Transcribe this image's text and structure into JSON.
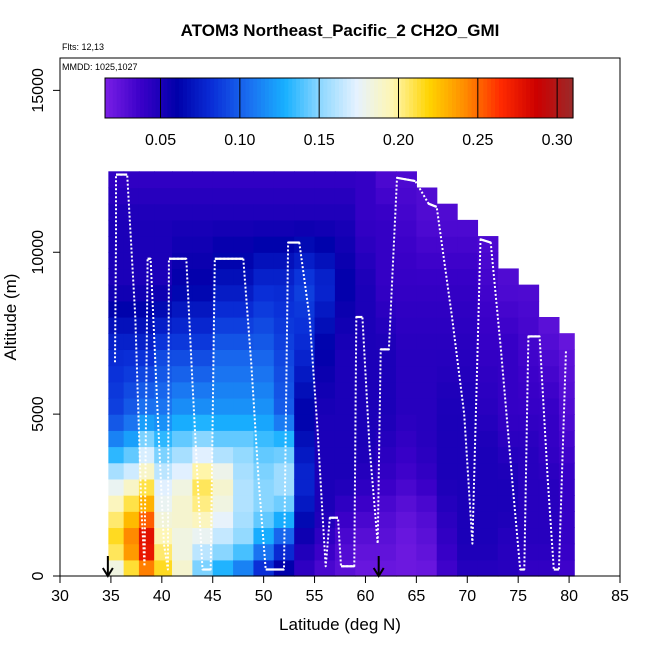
{
  "chart_data": {
    "type": "heatmap",
    "title": "ATOM3 Northeast_Pacific_2 CH2O_GMI",
    "flights_label": "Flts: 12,13",
    "dates_label": "MMDD: 1025,1027",
    "xlabel": "Latitude (deg N)",
    "ylabel": "Altitude (m)",
    "xlim": [
      30,
      85
    ],
    "ylim": [
      0,
      16000
    ],
    "x_ticks": [
      "30",
      "35",
      "40",
      "45",
      "50",
      "55",
      "60",
      "65",
      "70",
      "75",
      "80",
      "85"
    ],
    "y_ticks": [
      "0",
      "5000",
      "10000",
      "15000"
    ],
    "colorbar": {
      "range": [
        0.015,
        0.31
      ],
      "ticks": [
        "0.05",
        "0.10",
        "0.15",
        "0.20",
        "0.25",
        "0.30"
      ],
      "tick_values": [
        0.05,
        0.1,
        0.15,
        0.2,
        0.25,
        0.3
      ],
      "colors": [
        "#7a1fe6",
        "#3a00c8",
        "#0000aa",
        "#0a2fd8",
        "#1a6ff0",
        "#18b0ff",
        "#8fd8ff",
        "#e6f2ff",
        "#fff6b0",
        "#ffd400",
        "#ff8c00",
        "#ff2a00",
        "#cc0000",
        "#9b2a2a"
      ]
    },
    "markers": [
      {
        "label": "marker-1",
        "lat": 34.7
      },
      {
        "label": "marker-2",
        "lat": 61.3
      }
    ],
    "columns": [
      {
        "lat": 35.5,
        "top": 12500,
        "profile": [
          [
            0,
            0.17
          ],
          [
            1000,
            0.22
          ],
          [
            2000,
            0.2
          ],
          [
            3000,
            0.17
          ],
          [
            4000,
            0.12
          ],
          [
            5000,
            0.09
          ],
          [
            7000,
            0.08
          ],
          [
            9000,
            0.05
          ],
          [
            11000,
            0.05
          ],
          [
            12500,
            0.04
          ]
        ]
      },
      {
        "lat": 37.0,
        "top": 12500,
        "profile": [
          [
            0,
            0.2
          ],
          [
            1000,
            0.25
          ],
          [
            2000,
            0.22
          ],
          [
            3000,
            0.18
          ],
          [
            4000,
            0.13
          ],
          [
            5000,
            0.1
          ],
          [
            7000,
            0.08
          ],
          [
            9000,
            0.05
          ],
          [
            11000,
            0.05
          ],
          [
            12500,
            0.04
          ]
        ]
      },
      {
        "lat": 38.5,
        "top": 12500,
        "profile": [
          [
            0,
            0.23
          ],
          [
            1000,
            0.29
          ],
          [
            2000,
            0.24
          ],
          [
            3000,
            0.2
          ],
          [
            4000,
            0.16
          ],
          [
            5000,
            0.11
          ],
          [
            7000,
            0.08
          ],
          [
            9000,
            0.05
          ],
          [
            11000,
            0.05
          ],
          [
            12500,
            0.04
          ]
        ]
      },
      {
        "lat": 40.0,
        "top": 12500,
        "profile": [
          [
            0,
            0.22
          ],
          [
            1000,
            0.2
          ],
          [
            2000,
            0.18
          ],
          [
            3000,
            0.17
          ],
          [
            4000,
            0.14
          ],
          [
            5000,
            0.11
          ],
          [
            7000,
            0.09
          ],
          [
            9000,
            0.05
          ],
          [
            11000,
            0.05
          ],
          [
            12500,
            0.04
          ]
        ]
      },
      {
        "lat": 42.0,
        "top": 12500,
        "profile": [
          [
            0,
            0.19
          ],
          [
            1000,
            0.18
          ],
          [
            2000,
            0.19
          ],
          [
            3000,
            0.18
          ],
          [
            4000,
            0.15
          ],
          [
            5000,
            0.12
          ],
          [
            7000,
            0.09
          ],
          [
            9000,
            0.06
          ],
          [
            11000,
            0.05
          ],
          [
            12500,
            0.04
          ]
        ]
      },
      {
        "lat": 44.0,
        "top": 12500,
        "profile": [
          [
            0,
            0.14
          ],
          [
            1000,
            0.17
          ],
          [
            2000,
            0.2
          ],
          [
            3000,
            0.21
          ],
          [
            4000,
            0.16
          ],
          [
            5000,
            0.12
          ],
          [
            7000,
            0.09
          ],
          [
            9000,
            0.06
          ],
          [
            11000,
            0.05
          ],
          [
            12500,
            0.04
          ]
        ]
      },
      {
        "lat": 46.0,
        "top": 12500,
        "profile": [
          [
            0,
            0.12
          ],
          [
            1000,
            0.16
          ],
          [
            2000,
            0.18
          ],
          [
            3000,
            0.19
          ],
          [
            4000,
            0.15
          ],
          [
            5000,
            0.12
          ],
          [
            7000,
            0.1
          ],
          [
            9000,
            0.07
          ],
          [
            11000,
            0.05
          ],
          [
            12500,
            0.04
          ]
        ]
      },
      {
        "lat": 48.0,
        "top": 12500,
        "profile": [
          [
            0,
            0.1
          ],
          [
            1000,
            0.15
          ],
          [
            2000,
            0.16
          ],
          [
            3000,
            0.16
          ],
          [
            4000,
            0.15
          ],
          [
            5000,
            0.12
          ],
          [
            7000,
            0.1
          ],
          [
            9000,
            0.07
          ],
          [
            11000,
            0.05
          ],
          [
            12500,
            0.04
          ]
        ]
      },
      {
        "lat": 50.0,
        "top": 12500,
        "profile": [
          [
            0,
            0.07
          ],
          [
            1000,
            0.12
          ],
          [
            2000,
            0.15
          ],
          [
            3000,
            0.15
          ],
          [
            4000,
            0.14
          ],
          [
            5000,
            0.12
          ],
          [
            7000,
            0.1
          ],
          [
            9000,
            0.08
          ],
          [
            11000,
            0.05
          ],
          [
            12500,
            0.04
          ]
        ]
      },
      {
        "lat": 52.0,
        "top": 12500,
        "profile": [
          [
            0,
            0.05
          ],
          [
            1000,
            0.09
          ],
          [
            2000,
            0.14
          ],
          [
            3000,
            0.16
          ],
          [
            4000,
            0.14
          ],
          [
            5000,
            0.1
          ],
          [
            7000,
            0.09
          ],
          [
            9000,
            0.08
          ],
          [
            11000,
            0.05
          ],
          [
            12500,
            0.04
          ]
        ]
      },
      {
        "lat": 54.0,
        "top": 12500,
        "profile": [
          [
            0,
            0.04
          ],
          [
            1000,
            0.05
          ],
          [
            2000,
            0.07
          ],
          [
            3000,
            0.08
          ],
          [
            4000,
            0.07
          ],
          [
            5000,
            0.06
          ],
          [
            7000,
            0.08
          ],
          [
            9000,
            0.09
          ],
          [
            11000,
            0.05
          ],
          [
            12500,
            0.04
          ]
        ]
      },
      {
        "lat": 56.0,
        "top": 12500,
        "profile": [
          [
            0,
            0.03
          ],
          [
            1000,
            0.04
          ],
          [
            2000,
            0.05
          ],
          [
            3000,
            0.05
          ],
          [
            4000,
            0.05
          ],
          [
            5000,
            0.05
          ],
          [
            7000,
            0.06
          ],
          [
            9000,
            0.08
          ],
          [
            11000,
            0.05
          ],
          [
            12500,
            0.04
          ]
        ]
      },
      {
        "lat": 58.0,
        "top": 12500,
        "profile": [
          [
            0,
            0.025
          ],
          [
            1000,
            0.03
          ],
          [
            2000,
            0.04
          ],
          [
            3000,
            0.05
          ],
          [
            4000,
            0.05
          ],
          [
            5000,
            0.05
          ],
          [
            7000,
            0.05
          ],
          [
            9000,
            0.06
          ],
          [
            11000,
            0.05
          ],
          [
            12500,
            0.04
          ]
        ]
      },
      {
        "lat": 60.0,
        "top": 12500,
        "profile": [
          [
            0,
            0.02
          ],
          [
            1000,
            0.025
          ],
          [
            2000,
            0.035
          ],
          [
            3000,
            0.045
          ],
          [
            4000,
            0.05
          ],
          [
            5000,
            0.05
          ],
          [
            7000,
            0.05
          ],
          [
            9000,
            0.05
          ],
          [
            11000,
            0.04
          ],
          [
            12500,
            0.04
          ]
        ]
      },
      {
        "lat": 62.0,
        "top": 12500,
        "profile": [
          [
            0,
            0.02
          ],
          [
            1000,
            0.025
          ],
          [
            2000,
            0.03
          ],
          [
            3000,
            0.04
          ],
          [
            4000,
            0.045
          ],
          [
            5000,
            0.05
          ],
          [
            7000,
            0.05
          ],
          [
            9000,
            0.04
          ],
          [
            11000,
            0.04
          ],
          [
            12500,
            0.03
          ]
        ]
      },
      {
        "lat": 64.0,
        "top": 12500,
        "profile": [
          [
            0,
            0.02
          ],
          [
            1000,
            0.02
          ],
          [
            2000,
            0.025
          ],
          [
            3000,
            0.035
          ],
          [
            4000,
            0.04
          ],
          [
            5000,
            0.045
          ],
          [
            7000,
            0.045
          ],
          [
            9000,
            0.04
          ],
          [
            11000,
            0.035
          ],
          [
            12500,
            0.03
          ]
        ]
      },
      {
        "lat": 66.0,
        "top": 12000,
        "profile": [
          [
            0,
            0.02
          ],
          [
            1000,
            0.025
          ],
          [
            2000,
            0.03
          ],
          [
            3000,
            0.04
          ],
          [
            4000,
            0.045
          ],
          [
            5000,
            0.045
          ],
          [
            7000,
            0.045
          ],
          [
            9000,
            0.04
          ],
          [
            11000,
            0.03
          ],
          [
            12000,
            0.03
          ]
        ]
      },
      {
        "lat": 68.0,
        "top": 11500,
        "profile": [
          [
            0,
            0.035
          ],
          [
            1000,
            0.04
          ],
          [
            2000,
            0.045
          ],
          [
            3000,
            0.05
          ],
          [
            4000,
            0.05
          ],
          [
            5000,
            0.05
          ],
          [
            7000,
            0.045
          ],
          [
            9000,
            0.04
          ],
          [
            11000,
            0.03
          ],
          [
            11500,
            0.03
          ]
        ]
      },
      {
        "lat": 70.0,
        "top": 11000,
        "profile": [
          [
            0,
            0.045
          ],
          [
            1000,
            0.05
          ],
          [
            2000,
            0.05
          ],
          [
            3000,
            0.05
          ],
          [
            4000,
            0.05
          ],
          [
            5000,
            0.05
          ],
          [
            7000,
            0.045
          ],
          [
            9000,
            0.04
          ],
          [
            11000,
            0.03
          ]
        ]
      },
      {
        "lat": 72.0,
        "top": 10500,
        "profile": [
          [
            0,
            0.045
          ],
          [
            1000,
            0.05
          ],
          [
            2000,
            0.05
          ],
          [
            3000,
            0.05
          ],
          [
            4000,
            0.05
          ],
          [
            5000,
            0.045
          ],
          [
            7000,
            0.04
          ],
          [
            9000,
            0.035
          ],
          [
            10500,
            0.03
          ]
        ]
      },
      {
        "lat": 74.0,
        "top": 9500,
        "profile": [
          [
            0,
            0.045
          ],
          [
            1000,
            0.045
          ],
          [
            2000,
            0.05
          ],
          [
            3000,
            0.05
          ],
          [
            4000,
            0.045
          ],
          [
            5000,
            0.04
          ],
          [
            7000,
            0.04
          ],
          [
            9000,
            0.03
          ],
          [
            9500,
            0.03
          ]
        ]
      },
      {
        "lat": 76.0,
        "top": 9000,
        "profile": [
          [
            0,
            0.04
          ],
          [
            1000,
            0.045
          ],
          [
            2000,
            0.045
          ],
          [
            3000,
            0.045
          ],
          [
            4000,
            0.045
          ],
          [
            5000,
            0.04
          ],
          [
            7000,
            0.035
          ],
          [
            9000,
            0.03
          ]
        ]
      },
      {
        "lat": 78.0,
        "top": 8000,
        "profile": [
          [
            0,
            0.04
          ],
          [
            1000,
            0.045
          ],
          [
            2000,
            0.045
          ],
          [
            3000,
            0.045
          ],
          [
            4000,
            0.04
          ],
          [
            5000,
            0.04
          ],
          [
            7000,
            0.03
          ],
          [
            8000,
            0.025
          ]
        ]
      },
      {
        "lat": 80.0,
        "top": 7500,
        "profile": [
          [
            0,
            0.035
          ],
          [
            1000,
            0.04
          ],
          [
            2000,
            0.04
          ],
          [
            3000,
            0.04
          ],
          [
            4000,
            0.035
          ],
          [
            5000,
            0.03
          ],
          [
            7000,
            0.025
          ],
          [
            7500,
            0.02
          ]
        ]
      }
    ],
    "flight_track": [
      [
        35.4,
        6600
      ],
      [
        35.5,
        10400
      ],
      [
        35.5,
        12400
      ],
      [
        36.6,
        12400
      ],
      [
        37.4,
        8000
      ],
      [
        38.0,
        2000
      ],
      [
        38.3,
        300
      ],
      [
        38.6,
        9800
      ],
      [
        38.9,
        9800
      ],
      [
        39.6,
        5000
      ],
      [
        40.2,
        1000
      ],
      [
        40.6,
        200
      ],
      [
        40.7,
        9800
      ],
      [
        42.4,
        9800
      ],
      [
        43.0,
        6000
      ],
      [
        43.5,
        3000
      ],
      [
        44.0,
        200
      ],
      [
        44.8,
        200
      ],
      [
        45.2,
        9800
      ],
      [
        48.0,
        9800
      ],
      [
        48.8,
        6500
      ],
      [
        49.5,
        3000
      ],
      [
        50.2,
        200
      ],
      [
        52.0,
        200
      ],
      [
        52.4,
        10300
      ],
      [
        53.5,
        10300
      ],
      [
        54.5,
        8000
      ],
      [
        55.3,
        4500
      ],
      [
        55.8,
        1800
      ],
      [
        56.1,
        300
      ],
      [
        56.5,
        1800
      ],
      [
        57.3,
        1800
      ],
      [
        57.6,
        300
      ],
      [
        58.9,
        300
      ],
      [
        59.1,
        8000
      ],
      [
        59.7,
        8000
      ],
      [
        60.4,
        4000
      ],
      [
        61.2,
        1000
      ],
      [
        61.5,
        7000
      ],
      [
        62.3,
        7000
      ],
      [
        63.1,
        12300
      ],
      [
        64.9,
        12200
      ],
      [
        66.2,
        11500
      ],
      [
        67.0,
        11400
      ],
      [
        68.5,
        8000
      ],
      [
        69.7,
        5000
      ],
      [
        70.5,
        1000
      ],
      [
        71.3,
        10400
      ],
      [
        72.3,
        10300
      ],
      [
        73.3,
        7000
      ],
      [
        74.4,
        3000
      ],
      [
        75.2,
        200
      ],
      [
        75.6,
        200
      ],
      [
        76.0,
        7400
      ],
      [
        77.1,
        7400
      ],
      [
        77.9,
        3000
      ],
      [
        78.5,
        200
      ],
      [
        79.0,
        200
      ],
      [
        79.7,
        7000
      ]
    ]
  }
}
